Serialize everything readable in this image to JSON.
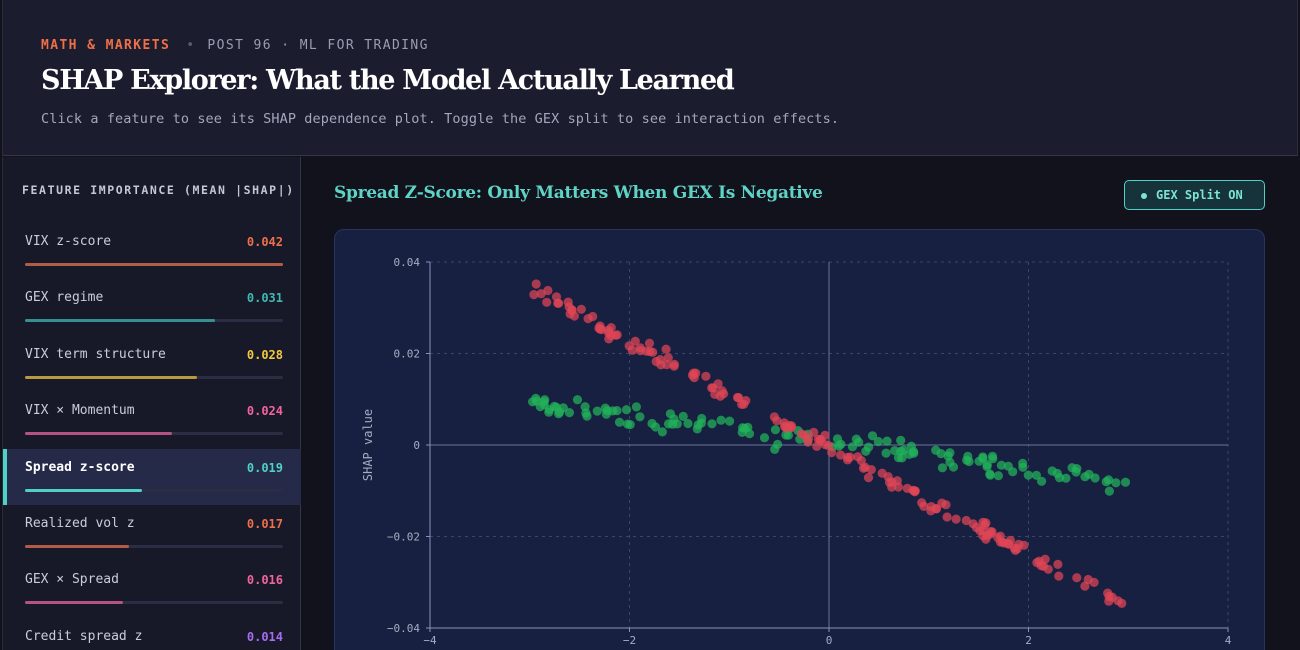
{
  "header": {
    "brand": "MATH & MARKETS",
    "separator": "•",
    "post": "POST 96 · ML FOR TRADING",
    "title": "SHAP Explorer: What the Model Actually Learned",
    "subtitle": "Click a feature to see its SHAP dependence plot. Toggle the GEX split to see interaction effects."
  },
  "sidebar": {
    "title": "FEATURE IMPORTANCE (MEAN |SHAP|)",
    "items": [
      {
        "label": "VIX z-score",
        "value": "0.042",
        "importance": 0.042,
        "color": "#ef6f4a",
        "active": false
      },
      {
        "label": "GEX regime",
        "value": "0.031",
        "importance": 0.031,
        "color": "#3fb9b0",
        "active": false
      },
      {
        "label": "VIX term structure",
        "value": "0.028",
        "importance": 0.028,
        "color": "#f3c93d",
        "active": false
      },
      {
        "label": "VIX × Momentum",
        "value": "0.024",
        "importance": 0.024,
        "color": "#f2649c",
        "active": false
      },
      {
        "label": "Spread z-score",
        "value": "0.019",
        "importance": 0.019,
        "color": "#4fd1c5",
        "active": true
      },
      {
        "label": "Realized vol z",
        "value": "0.017",
        "importance": 0.017,
        "color": "#ef6f4a",
        "active": false
      },
      {
        "label": "GEX × Spread",
        "value": "0.016",
        "importance": 0.016,
        "color": "#f2649c",
        "active": false
      },
      {
        "label": "Credit spread z",
        "value": "0.014",
        "importance": 0.014,
        "color": "#a66cf2",
        "active": false
      }
    ]
  },
  "main": {
    "plot_title": "Spread Z-Score: Only Matters When GEX Is Negative",
    "toggle_label": "GEX Split ON"
  },
  "colors": {
    "negative_gex": "#e04556",
    "positive_gex": "#22b35a",
    "accent": "#4fd1c5"
  },
  "chart_data": {
    "type": "scatter",
    "xlabel": "",
    "ylabel": "SHAP value",
    "xlim": [
      -4,
      4
    ],
    "ylim": [
      -0.04,
      0.04
    ],
    "x_ticks": [
      -4,
      -2,
      0,
      2,
      4
    ],
    "x_tick_labels": [
      "−4",
      "−2",
      "0",
      "2",
      "4"
    ],
    "y_ticks": [
      0.04,
      0.02,
      0,
      -0.02,
      -0.04
    ],
    "y_tick_labels": [
      "0.04",
      "0.02",
      "0",
      "−0.02",
      "−0.04"
    ],
    "grid": true,
    "series": [
      {
        "color": "#e04556",
        "trend": {
          "x_range": [
            -3,
            3
          ],
          "slope": -0.0117,
          "intercept": -0.0005,
          "noise": 0.0016
        },
        "count": 160
      },
      {
        "color": "#22b35a",
        "trend": {
          "x_range": [
            -3,
            3
          ],
          "slope": -0.003,
          "intercept": 0.0005,
          "noise": 0.0022
        },
        "count": 130
      }
    ]
  }
}
